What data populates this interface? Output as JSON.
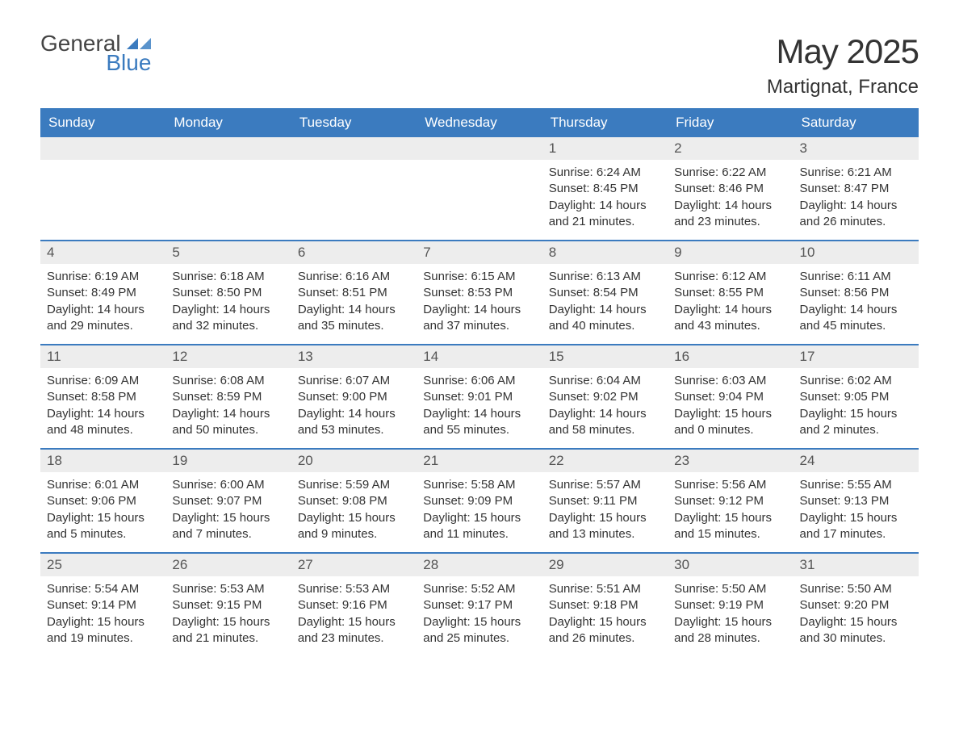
{
  "logo": {
    "top": "General",
    "bottom": "Blue"
  },
  "title": "May 2025",
  "location": "Martignat, France",
  "colors": {
    "header_bg": "#3b7bbf",
    "header_text": "#ffffff",
    "daynum_bg": "#ededed",
    "week_divider": "#3b7bbf",
    "body_text": "#333333"
  },
  "day_headers": [
    "Sunday",
    "Monday",
    "Tuesday",
    "Wednesday",
    "Thursday",
    "Friday",
    "Saturday"
  ],
  "weeks": [
    [
      null,
      null,
      null,
      null,
      {
        "n": "1",
        "sunrise": "6:24 AM",
        "sunset": "8:45 PM",
        "daylight": "14 hours and 21 minutes."
      },
      {
        "n": "2",
        "sunrise": "6:22 AM",
        "sunset": "8:46 PM",
        "daylight": "14 hours and 23 minutes."
      },
      {
        "n": "3",
        "sunrise": "6:21 AM",
        "sunset": "8:47 PM",
        "daylight": "14 hours and 26 minutes."
      }
    ],
    [
      {
        "n": "4",
        "sunrise": "6:19 AM",
        "sunset": "8:49 PM",
        "daylight": "14 hours and 29 minutes."
      },
      {
        "n": "5",
        "sunrise": "6:18 AM",
        "sunset": "8:50 PM",
        "daylight": "14 hours and 32 minutes."
      },
      {
        "n": "6",
        "sunrise": "6:16 AM",
        "sunset": "8:51 PM",
        "daylight": "14 hours and 35 minutes."
      },
      {
        "n": "7",
        "sunrise": "6:15 AM",
        "sunset": "8:53 PM",
        "daylight": "14 hours and 37 minutes."
      },
      {
        "n": "8",
        "sunrise": "6:13 AM",
        "sunset": "8:54 PM",
        "daylight": "14 hours and 40 minutes."
      },
      {
        "n": "9",
        "sunrise": "6:12 AM",
        "sunset": "8:55 PM",
        "daylight": "14 hours and 43 minutes."
      },
      {
        "n": "10",
        "sunrise": "6:11 AM",
        "sunset": "8:56 PM",
        "daylight": "14 hours and 45 minutes."
      }
    ],
    [
      {
        "n": "11",
        "sunrise": "6:09 AM",
        "sunset": "8:58 PM",
        "daylight": "14 hours and 48 minutes."
      },
      {
        "n": "12",
        "sunrise": "6:08 AM",
        "sunset": "8:59 PM",
        "daylight": "14 hours and 50 minutes."
      },
      {
        "n": "13",
        "sunrise": "6:07 AM",
        "sunset": "9:00 PM",
        "daylight": "14 hours and 53 minutes."
      },
      {
        "n": "14",
        "sunrise": "6:06 AM",
        "sunset": "9:01 PM",
        "daylight": "14 hours and 55 minutes."
      },
      {
        "n": "15",
        "sunrise": "6:04 AM",
        "sunset": "9:02 PM",
        "daylight": "14 hours and 58 minutes."
      },
      {
        "n": "16",
        "sunrise": "6:03 AM",
        "sunset": "9:04 PM",
        "daylight": "15 hours and 0 minutes."
      },
      {
        "n": "17",
        "sunrise": "6:02 AM",
        "sunset": "9:05 PM",
        "daylight": "15 hours and 2 minutes."
      }
    ],
    [
      {
        "n": "18",
        "sunrise": "6:01 AM",
        "sunset": "9:06 PM",
        "daylight": "15 hours and 5 minutes."
      },
      {
        "n": "19",
        "sunrise": "6:00 AM",
        "sunset": "9:07 PM",
        "daylight": "15 hours and 7 minutes."
      },
      {
        "n": "20",
        "sunrise": "5:59 AM",
        "sunset": "9:08 PM",
        "daylight": "15 hours and 9 minutes."
      },
      {
        "n": "21",
        "sunrise": "5:58 AM",
        "sunset": "9:09 PM",
        "daylight": "15 hours and 11 minutes."
      },
      {
        "n": "22",
        "sunrise": "5:57 AM",
        "sunset": "9:11 PM",
        "daylight": "15 hours and 13 minutes."
      },
      {
        "n": "23",
        "sunrise": "5:56 AM",
        "sunset": "9:12 PM",
        "daylight": "15 hours and 15 minutes."
      },
      {
        "n": "24",
        "sunrise": "5:55 AM",
        "sunset": "9:13 PM",
        "daylight": "15 hours and 17 minutes."
      }
    ],
    [
      {
        "n": "25",
        "sunrise": "5:54 AM",
        "sunset": "9:14 PM",
        "daylight": "15 hours and 19 minutes."
      },
      {
        "n": "26",
        "sunrise": "5:53 AM",
        "sunset": "9:15 PM",
        "daylight": "15 hours and 21 minutes."
      },
      {
        "n": "27",
        "sunrise": "5:53 AM",
        "sunset": "9:16 PM",
        "daylight": "15 hours and 23 minutes."
      },
      {
        "n": "28",
        "sunrise": "5:52 AM",
        "sunset": "9:17 PM",
        "daylight": "15 hours and 25 minutes."
      },
      {
        "n": "29",
        "sunrise": "5:51 AM",
        "sunset": "9:18 PM",
        "daylight": "15 hours and 26 minutes."
      },
      {
        "n": "30",
        "sunrise": "5:50 AM",
        "sunset": "9:19 PM",
        "daylight": "15 hours and 28 minutes."
      },
      {
        "n": "31",
        "sunrise": "5:50 AM",
        "sunset": "9:20 PM",
        "daylight": "15 hours and 30 minutes."
      }
    ]
  ],
  "labels": {
    "sunrise": "Sunrise:",
    "sunset": "Sunset:",
    "daylight": "Daylight:"
  }
}
